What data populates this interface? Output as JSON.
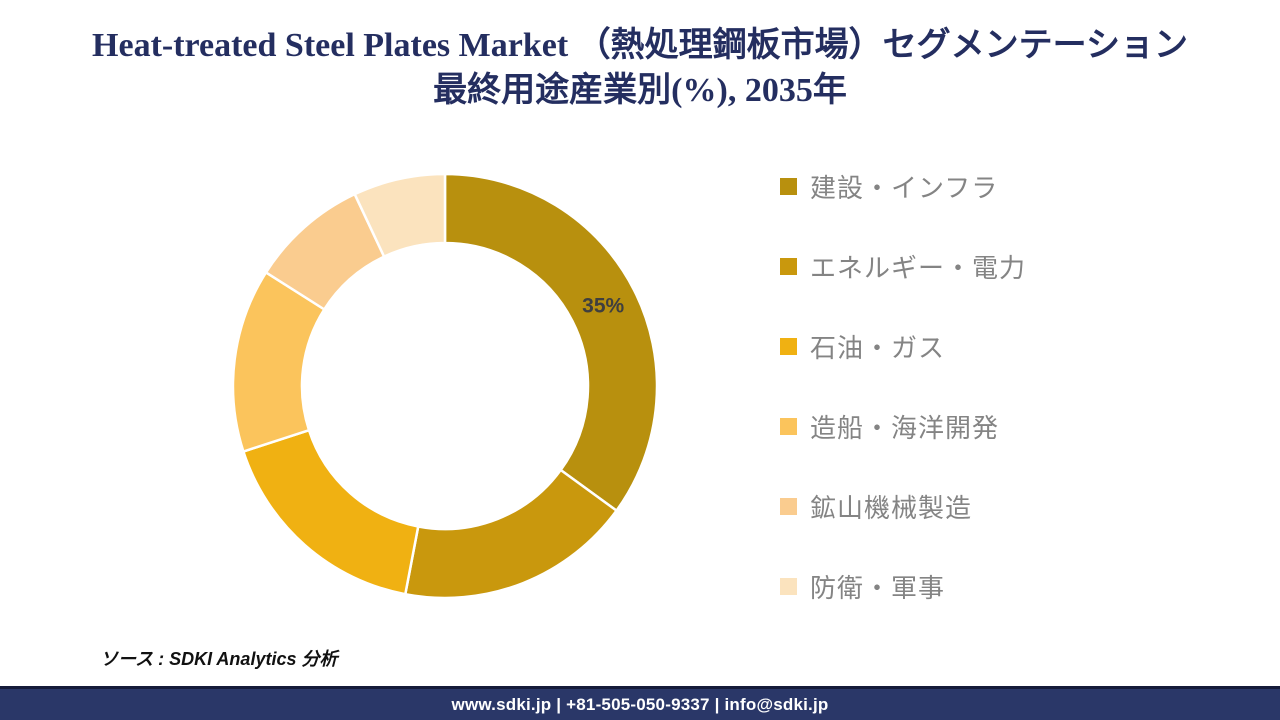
{
  "title": {
    "line1": "Heat-treated Steel Plates Market （熱処理鋼板市場）セグメンテーション",
    "line2": "最終用途産業別(%), 2035年"
  },
  "chart_data": {
    "type": "pie",
    "subtype": "donut",
    "title": "Heat-treated Steel Plates Market （熱処理鋼板市場）セグメンテーション 最終用途産業別(%), 2035年",
    "unit": "%",
    "start_angle_deg": 0,
    "direction": "clockwise",
    "donut_hole_ratio": 0.675,
    "legend_position": "right",
    "segments": [
      {
        "label": "建設・インフラ",
        "value": 35,
        "color": "#B8900E",
        "data_label": "35%"
      },
      {
        "label": "エネルギー・電力",
        "value": 18,
        "color": "#C9980D",
        "data_label": null
      },
      {
        "label": "石油・ガス",
        "value": 17,
        "color": "#F0B112",
        "data_label": null
      },
      {
        "label": "造船・海洋開発",
        "value": 14,
        "color": "#FBC45C",
        "data_label": null
      },
      {
        "label": "鉱山機械製造",
        "value": 9,
        "color": "#FACC8F",
        "data_label": null
      },
      {
        "label": "防衛・軍事",
        "value": 7,
        "color": "#FBE3BE",
        "data_label": null
      }
    ]
  },
  "source": {
    "text": "ソース : SDKI Analytics 分析"
  },
  "footer": {
    "text": "www.sdki.jp | +81-505-050-9337 | info@sdki.jp"
  },
  "colors": {
    "title_text": "#242E60",
    "legend_text": "#848484",
    "slice_label": "#3F3F3F",
    "footer_bg": "#2A3768",
    "footer_text": "#FFFFFF",
    "separator": "#FFFFFF"
  }
}
